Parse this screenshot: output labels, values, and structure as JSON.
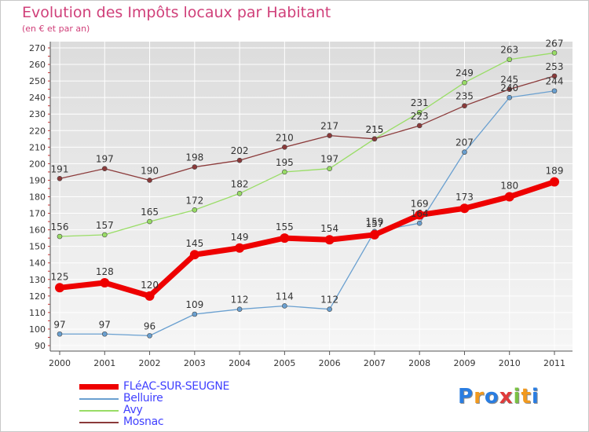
{
  "chart_data": {
    "type": "line",
    "title": "Evolution des Impôts locaux par Habitant",
    "subtitle": "(en € et par an)",
    "x": [
      "2000",
      "2001",
      "2002",
      "2003",
      "2004",
      "2005",
      "2006",
      "2007",
      "2008",
      "2009",
      "2010",
      "2011"
    ],
    "ylim": [
      90,
      270
    ],
    "yticks": [
      90,
      100,
      110,
      120,
      130,
      140,
      150,
      160,
      170,
      180,
      190,
      200,
      210,
      220,
      230,
      240,
      250,
      260,
      270
    ],
    "grid": true,
    "legend_position": "bottom-left",
    "series": [
      {
        "name": "FLéAC-SUR-SEUGNE",
        "color": "#ee0000",
        "values": [
          125,
          128,
          120,
          145,
          149,
          155,
          154,
          157,
          169,
          173,
          180,
          189
        ]
      },
      {
        "name": "Belluire",
        "color": "#6aa0d0",
        "values": [
          97,
          97,
          96,
          109,
          112,
          114,
          112,
          159,
          164,
          207,
          240,
          244
        ]
      },
      {
        "name": "Avy",
        "color": "#99dd66",
        "values": [
          156,
          157,
          165,
          172,
          182,
          195,
          197,
          215,
          231,
          249,
          263,
          267
        ]
      },
      {
        "name": "Mosnac",
        "color": "#8b3a3a",
        "values": [
          191,
          197,
          190,
          198,
          202,
          210,
          217,
          215,
          223,
          235,
          245,
          253
        ]
      }
    ]
  },
  "logo": {
    "letters": [
      "P",
      "r",
      "o",
      "x",
      "i",
      "t",
      "i"
    ],
    "colors": [
      "#2a7de1",
      "#f29a1f",
      "#2a7de1",
      "#e03a3a",
      "#7ac143",
      "#f29a1f",
      "#2a7de1"
    ]
  }
}
